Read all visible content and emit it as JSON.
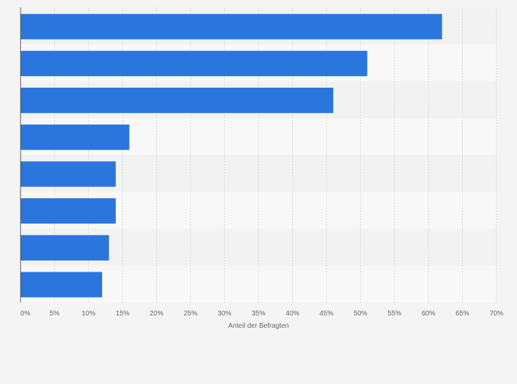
{
  "chart_data": {
    "type": "bar",
    "orientation": "horizontal",
    "categories": [
      "",
      "",
      "",
      "",
      "",
      "",
      "",
      ""
    ],
    "values": [
      62,
      51,
      46,
      16,
      14,
      14,
      13,
      12
    ],
    "value_unit": "%",
    "xlim": [
      0,
      70
    ],
    "xticks": [
      "0%",
      "5%",
      "10%",
      "15%",
      "20%",
      "25%",
      "30%",
      "35%",
      "40%",
      "45%",
      "50%",
      "55%",
      "60%",
      "65%",
      "70%"
    ],
    "xlabel": "Anteil der Befragten",
    "ylabel": "",
    "title": "",
    "grid": "vertical dashed",
    "legend": "none"
  },
  "colors": {
    "bar": "#2a76dc",
    "band_a": "#f2f2f2",
    "band_b": "#f8f8f8",
    "grid": "#d6d6d6",
    "axis": "#555555"
  }
}
